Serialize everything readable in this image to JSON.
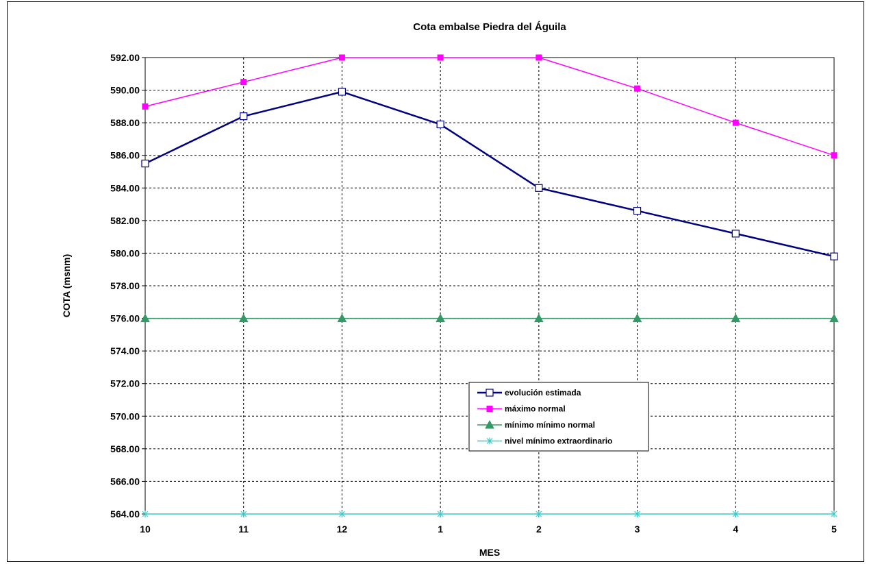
{
  "chart_data": {
    "type": "line",
    "title": "Cota embalse Piedra del Águila",
    "xlabel": "MES",
    "ylabel": "COTA (msnm)",
    "categories": [
      "10",
      "11",
      "12",
      "1",
      "2",
      "3",
      "4",
      "5"
    ],
    "ylim": [
      564,
      592
    ],
    "yticks": [
      "564.00",
      "566.00",
      "568.00",
      "570.00",
      "572.00",
      "574.00",
      "576.00",
      "578.00",
      "580.00",
      "582.00",
      "584.00",
      "586.00",
      "588.00",
      "590.00",
      "592.00"
    ],
    "grid": true,
    "legend_position": "center-bottom",
    "series": [
      {
        "name": "evolución estimada",
        "color": "#000080",
        "marker": "square-open",
        "values": [
          585.5,
          588.4,
          589.9,
          587.9,
          584.0,
          582.6,
          581.2,
          579.8
        ]
      },
      {
        "name": "máximo normal",
        "color": "#FF00FF",
        "marker": "square-filled",
        "values": [
          589.0,
          590.5,
          592.0,
          592.0,
          592.0,
          590.1,
          588.0,
          586.0
        ]
      },
      {
        "name": "mínimo mínimo normal",
        "color": "#339966",
        "marker": "triangle",
        "values": [
          576.0,
          576.0,
          576.0,
          576.0,
          576.0,
          576.0,
          576.0,
          576.0
        ]
      },
      {
        "name": "nivel mínimo extraordinario",
        "color": "#33CCCC",
        "marker": "star",
        "values": [
          564.0,
          564.0,
          564.0,
          564.0,
          564.0,
          564.0,
          564.0,
          564.0
        ]
      }
    ]
  }
}
